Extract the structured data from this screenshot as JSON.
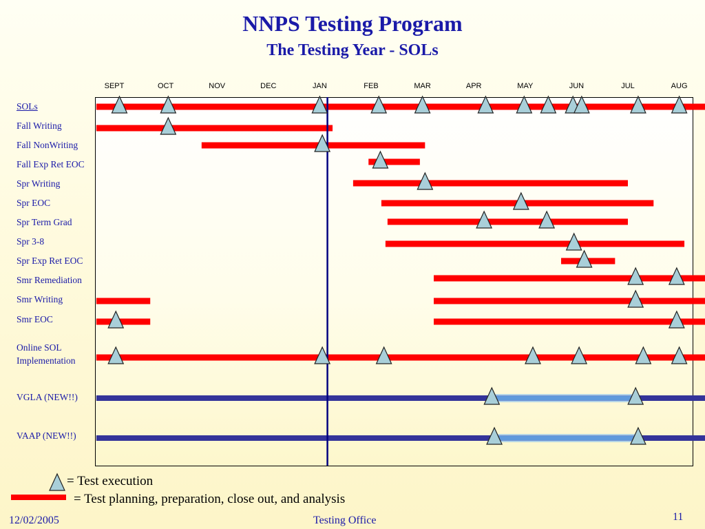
{
  "slide": {
    "title": "NNPS Testing Program",
    "subtitle": "The Testing Year - SOLs",
    "date": "12/02/2005",
    "office": "Testing Office",
    "page_number": "11"
  },
  "legend": {
    "triangle_text": "= Test execution",
    "bar_text": "= Test planning, preparation, close out, and analysis"
  },
  "colors": {
    "red": "#ff0000",
    "blue": "#34349a",
    "triangle_fill": "#a9cfd9",
    "divider": "#000080",
    "text_blue": "#1a1aa8"
  },
  "chart_data": {
    "type": "timeline",
    "months": [
      "SEPT",
      "OCT",
      "NOV",
      "DEC",
      "JAN",
      "FEB",
      "MAR",
      "APR",
      "MAY",
      "JUN",
      "JUL",
      "AUG"
    ],
    "current_marker_month": 4.15,
    "rows": [
      {
        "label": "SOLs",
        "underline": true,
        "color": "red",
        "bars": [
          [
            -0.35,
            11.6
          ]
        ],
        "triangles": [
          0.1,
          1.05,
          4.0,
          5.15,
          6.0,
          7.23,
          7.98,
          8.45,
          8.93,
          9.1,
          10.2,
          11.0
        ]
      },
      {
        "label": "Fall Writing",
        "color": "red",
        "bars": [
          [
            -0.35,
            4.25
          ]
        ],
        "triangles": [
          1.05
        ]
      },
      {
        "label": "Fall NonWriting",
        "color": "red",
        "bars": [
          [
            1.7,
            6.05
          ]
        ],
        "triangles": [
          4.05
        ]
      },
      {
        "label": "Fall Exp Ret EOC",
        "color": "red",
        "bars": [
          [
            4.95,
            5.95
          ]
        ],
        "triangles": [
          5.18
        ]
      },
      {
        "label": "Spr Writing",
        "color": "red",
        "bars": [
          [
            4.65,
            10.0
          ]
        ],
        "triangles": [
          6.05
        ]
      },
      {
        "label": "Spr EOC",
        "color": "red",
        "bars": [
          [
            5.2,
            10.5
          ]
        ],
        "triangles": [
          7.92
        ]
      },
      {
        "label": "Spr Term Grad",
        "color": "red",
        "bars": [
          [
            5.32,
            10.0
          ]
        ],
        "triangles": [
          7.2,
          8.42
        ]
      },
      {
        "label": "Spr 3-8",
        "color": "red",
        "bars": [
          [
            5.28,
            11.1
          ]
        ],
        "triangles": [
          8.95
        ]
      },
      {
        "label": "Spr Exp Ret EOC",
        "color": "red",
        "bars": [
          [
            8.7,
            9.75
          ]
        ],
        "triangles": [
          9.15
        ]
      },
      {
        "label": "Smr Remediation",
        "color": "red",
        "bars": [
          [
            6.22,
            11.6
          ]
        ],
        "triangles": [
          10.15,
          10.95
        ]
      },
      {
        "label": "Smr Writing",
        "color": "red",
        "bars": [
          [
            -0.35,
            0.7
          ],
          [
            6.22,
            11.6
          ]
        ],
        "triangles": [
          10.15
        ]
      },
      {
        "label": "Smr EOC",
        "color": "red",
        "bars": [
          [
            -0.35,
            0.7
          ],
          [
            6.22,
            11.6
          ]
        ],
        "triangles": [
          0.03,
          10.95
        ]
      },
      {
        "label": "Online SOL\nImplementation",
        "color": "red",
        "bars": [
          [
            -0.35,
            11.6
          ]
        ],
        "triangles": [
          0.03,
          4.05,
          5.25,
          8.15,
          9.05,
          10.3,
          11.0
        ]
      },
      {
        "label": "VGLA (NEW!!)",
        "color": "blue",
        "bars": [
          [
            -0.35,
            11.6
          ]
        ],
        "highlight": [
          7.3,
          10.1
        ],
        "triangles": [
          7.35,
          10.15
        ]
      },
      {
        "label": "VAAP (NEW!!)",
        "color": "blue",
        "bars": [
          [
            -0.35,
            11.6
          ]
        ],
        "highlight": [
          7.35,
          10.2
        ],
        "triangles": [
          7.4,
          10.2
        ]
      }
    ]
  }
}
